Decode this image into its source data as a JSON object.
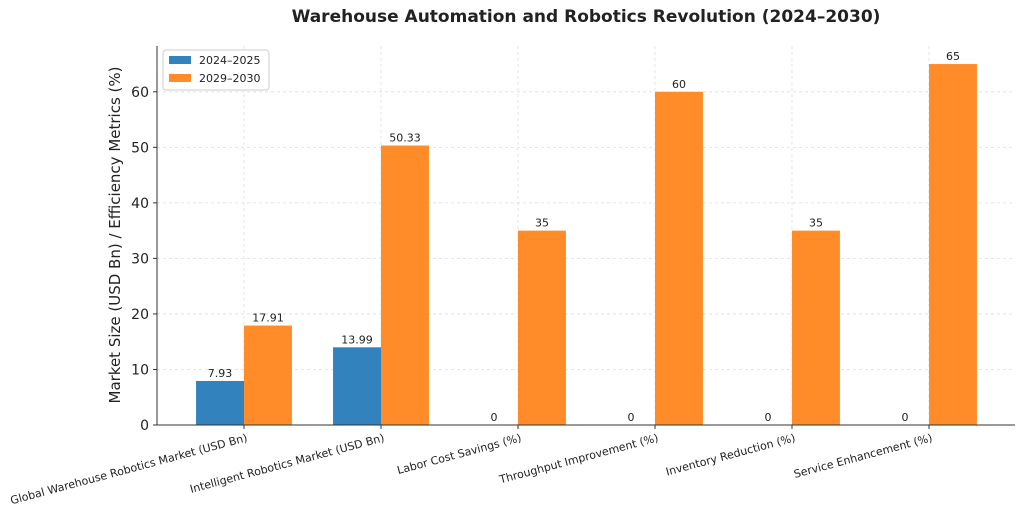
{
  "chart_data": {
    "type": "bar",
    "title": "Warehouse Automation and Robotics Revolution (2024–2030)",
    "y_label": "Market Size (USD Bn) / Efficiency Metrics (%)",
    "categories": [
      "Global Warehouse Robotics Market (USD Bn)",
      "Intelligent Robotics Market (USD Bn)",
      "Labor Cost Savings (%)",
      "Throughput Improvement (%)",
      "Inventory Reduction (%)",
      "Service Enhancement (%)"
    ],
    "series": [
      {
        "name": "2024–2025",
        "color": "#3282bd",
        "values": [
          7.93,
          13.99,
          0,
          0,
          0,
          0
        ]
      },
      {
        "name": "2029–2030",
        "color": "#ff8c28",
        "values": [
          17.91,
          50.33,
          35,
          60,
          35,
          65
        ]
      }
    ],
    "ylim": [
      0,
      68.25
    ],
    "yticks": [
      0,
      10,
      20,
      30,
      40,
      50,
      60
    ],
    "grid": true,
    "legend": "upper left"
  }
}
